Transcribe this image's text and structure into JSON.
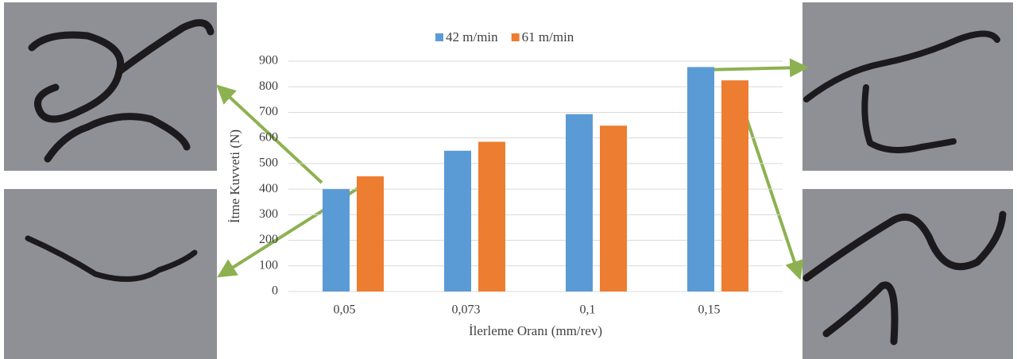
{
  "chart_data": {
    "type": "bar",
    "categories": [
      "0,05",
      "0,073",
      "0,1",
      "0,15"
    ],
    "series": [
      {
        "name": "42 m/min",
        "color": "#5b9bd5",
        "values": [
          400,
          550,
          693,
          877
        ]
      },
      {
        "name": "61 m/min",
        "color": "#ed7d31",
        "values": [
          450,
          585,
          648,
          825
        ]
      }
    ],
    "xlabel": "İlerleme Oranı (mm/rev)",
    "ylabel": "İtme Kuvveti (N)",
    "ylim": [
      0,
      900
    ],
    "yticks": [
      0,
      100,
      200,
      300,
      400,
      500,
      600,
      700,
      800,
      900
    ],
    "grid": true,
    "legend": "top"
  }
}
